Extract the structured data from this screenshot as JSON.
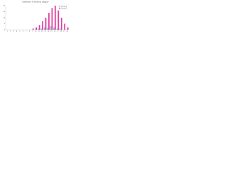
{
  "chart_data": {
    "type": "bar",
    "title": "Distribution of values by category",
    "categories": [
      "1",
      "2",
      "3",
      "4",
      "5",
      "6",
      "7",
      "8",
      "9",
      "10",
      "11",
      "12",
      "13",
      "14",
      "15",
      "16",
      "17",
      "18",
      "19",
      "20"
    ],
    "series": [
      {
        "name": "Group A",
        "color": "#9fb8d8",
        "values": [
          0,
          0,
          0,
          0,
          0,
          0,
          0,
          0,
          0,
          0,
          1,
          1,
          2,
          2,
          3,
          2,
          1,
          1,
          0,
          0
        ]
      },
      {
        "name": "Group B",
        "color": "#e040a0",
        "values": [
          0,
          0,
          0,
          0,
          0,
          0,
          0,
          0,
          1,
          2,
          4,
          7,
          10,
          14,
          18,
          20,
          16,
          10,
          5,
          2
        ]
      }
    ],
    "ylim": [
      0,
      20
    ],
    "yticks": [
      0,
      5,
      10,
      15,
      20
    ],
    "grid": false,
    "legend": "top-right"
  }
}
